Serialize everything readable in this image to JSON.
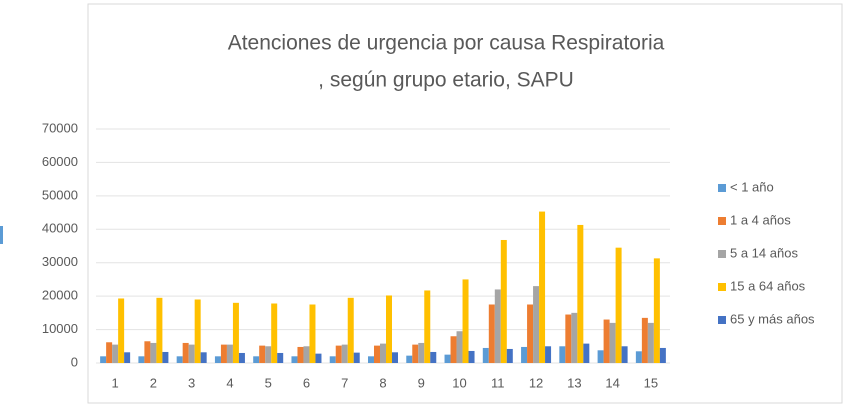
{
  "chart_data": {
    "type": "bar",
    "title": [
      "Atenciones de urgencia por causa Respiratoria",
      ", según grupo etario, SAPU"
    ],
    "categories": [
      "1",
      "2",
      "3",
      "4",
      "5",
      "6",
      "7",
      "8",
      "9",
      "10",
      "11",
      "12",
      "13",
      "14",
      "15"
    ],
    "series": [
      {
        "name": "< 1 año",
        "color": "#5b9bd5",
        "values": [
          2000,
          2000,
          2000,
          2000,
          2000,
          2000,
          2000,
          2000,
          2200,
          2500,
          4500,
          4800,
          5000,
          3800,
          3500
        ]
      },
      {
        "name": "1 a 4 años",
        "color": "#ed7d31",
        "values": [
          6200,
          6500,
          6000,
          5500,
          5200,
          4800,
          5200,
          5200,
          5500,
          8000,
          17500,
          17500,
          14500,
          13000,
          13500
        ]
      },
      {
        "name": "5 a 14 años",
        "color": "#a5a5a5",
        "values": [
          5500,
          6000,
          5500,
          5500,
          5000,
          5000,
          5500,
          5800,
          6000,
          9500,
          22000,
          23000,
          15000,
          12000,
          12000
        ]
      },
      {
        "name": "15 a 64 años",
        "color": "#ffc000",
        "values": [
          19300,
          19500,
          19000,
          18000,
          17800,
          17500,
          19500,
          20200,
          21700,
          25000,
          36800,
          45300,
          41300,
          34500,
          31300
        ]
      },
      {
        "name": "65 y más años",
        "color": "#4472c4",
        "values": [
          3200,
          3300,
          3200,
          3000,
          3000,
          2800,
          3100,
          3200,
          3300,
          3600,
          4200,
          5000,
          5800,
          5000,
          4500
        ]
      }
    ],
    "ylim": [
      0,
      70000
    ],
    "yticks": [
      0,
      10000,
      20000,
      30000,
      40000,
      50000,
      60000,
      70000
    ],
    "grid": true,
    "legend": "right"
  }
}
